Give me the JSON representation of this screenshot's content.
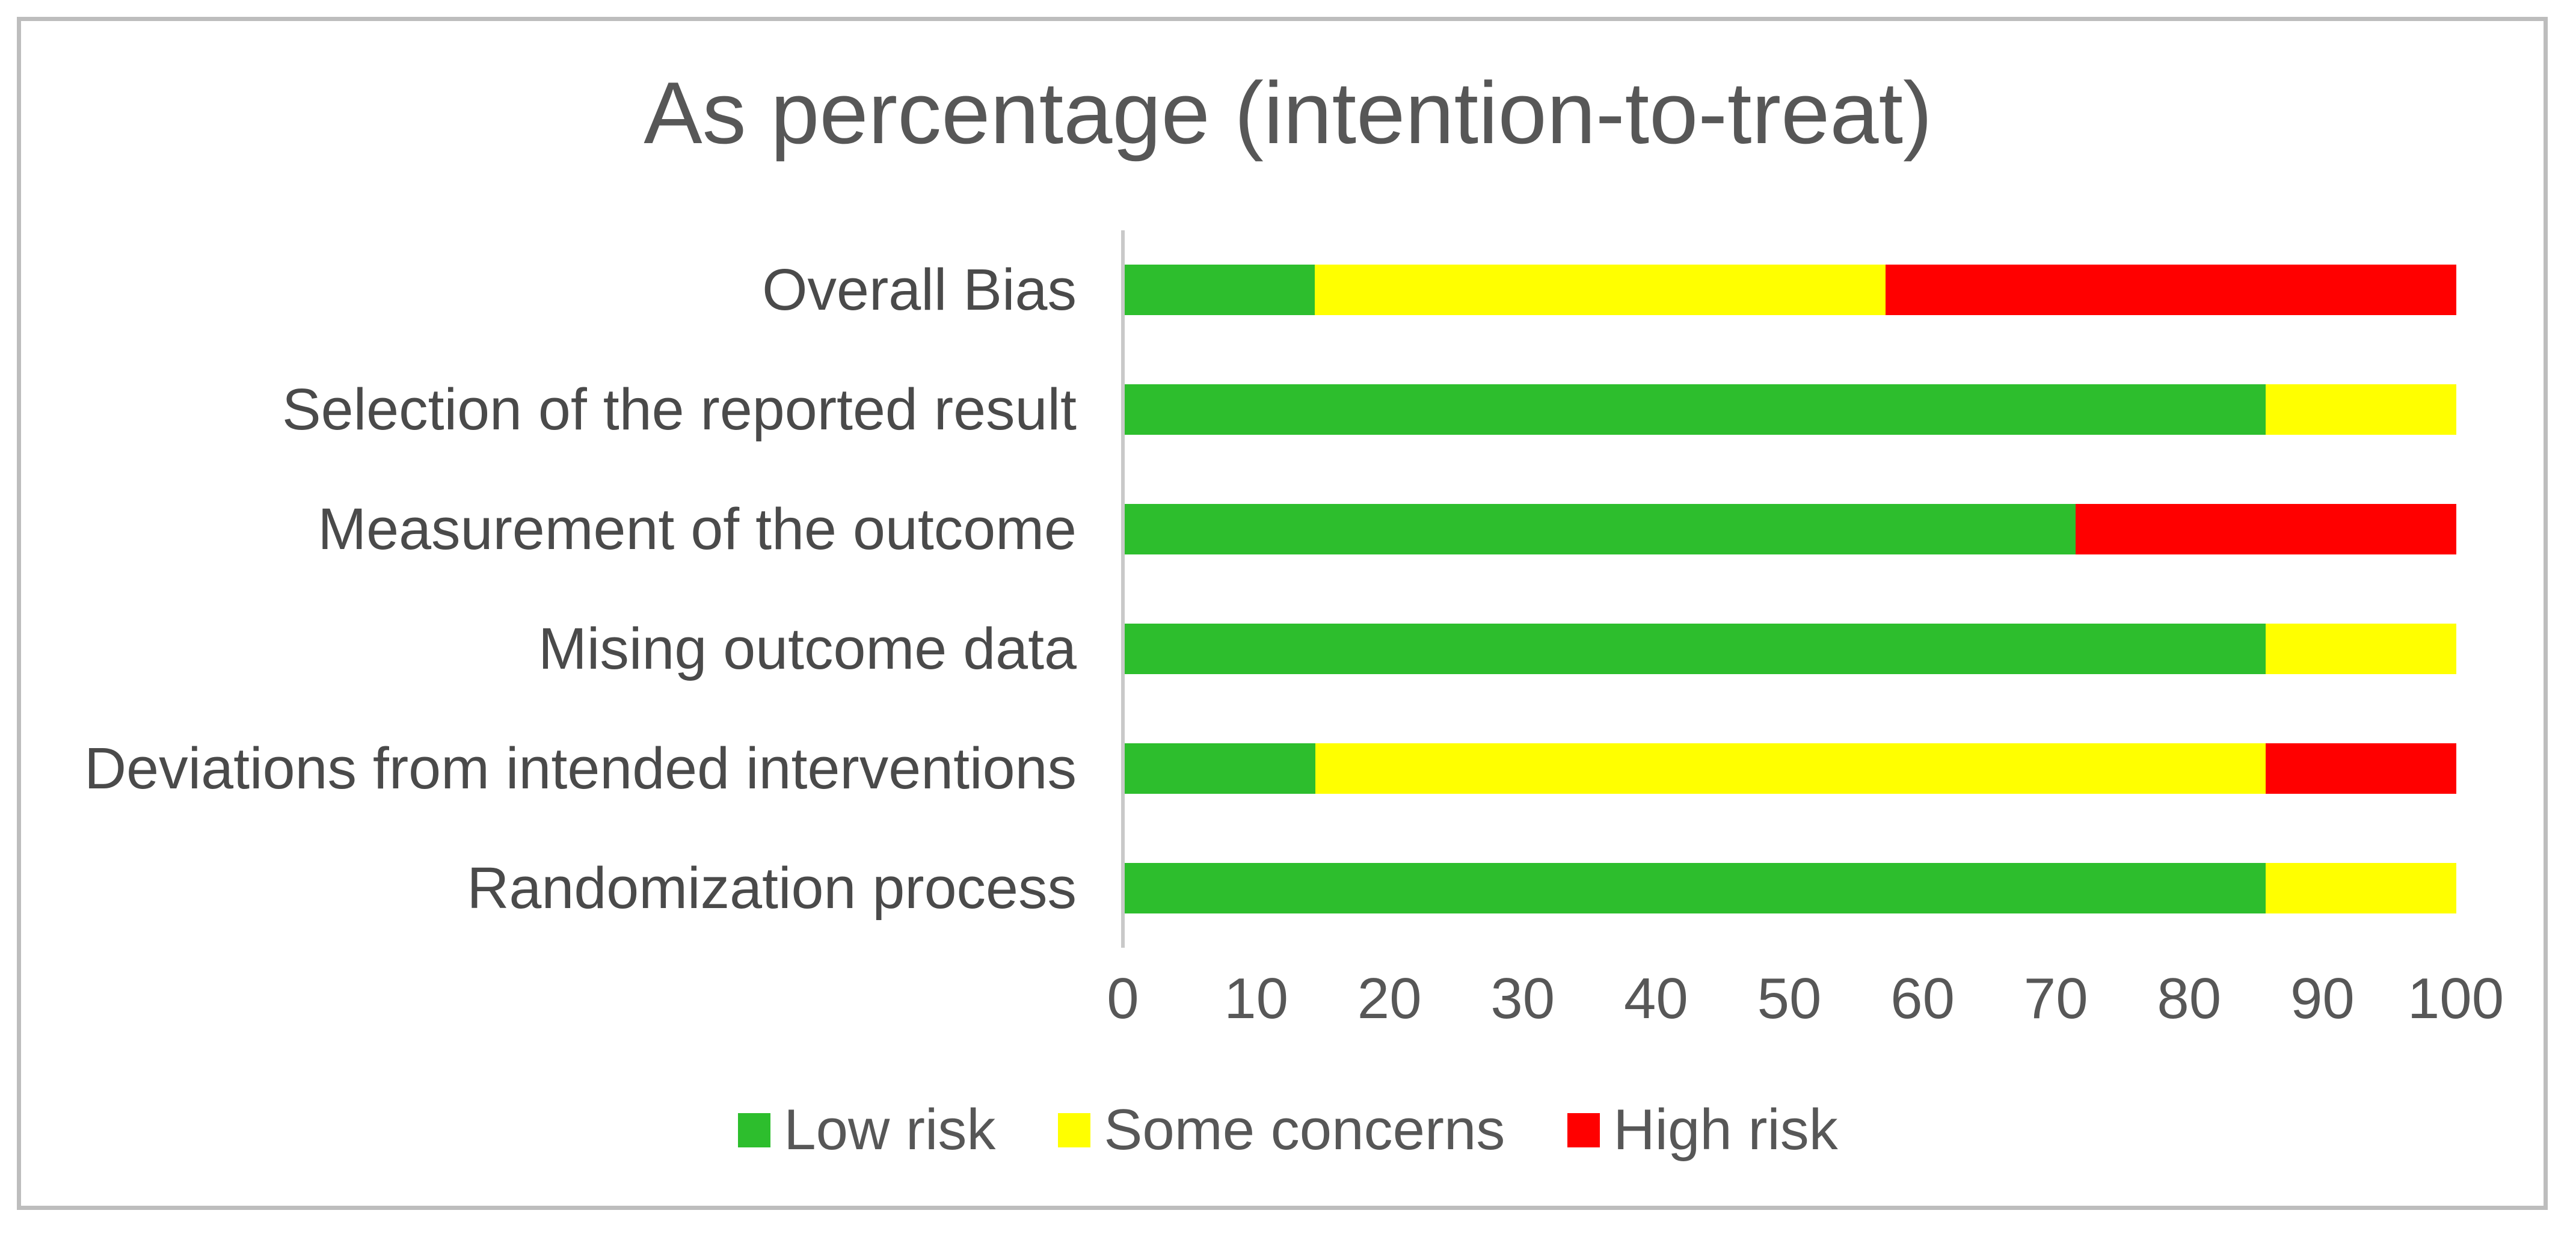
{
  "title": "As percentage (intention-to-treat)",
  "colors": {
    "low_risk": "#2dbe2d",
    "some_concerns": "#ffff00",
    "high_risk": "#ff0000",
    "title_text": "#575757",
    "category_text": "#4a4a4a",
    "tick_text": "#575757",
    "legend_text": "#575757",
    "axis_line": "#c9c9c9",
    "frame_border": "#bdbdbd",
    "background": "#ffffff"
  },
  "chart_data": {
    "type": "bar",
    "orientation": "horizontal",
    "stacked": true,
    "unit": "percent",
    "title": "As percentage (intention-to-treat)",
    "xlabel": "",
    "ylabel": "",
    "xlim": [
      0,
      100
    ],
    "x_ticks": [
      0,
      10,
      20,
      30,
      40,
      50,
      60,
      70,
      80,
      90,
      100
    ],
    "grid": false,
    "legend_position": "bottom",
    "categories": [
      "Overall Bias",
      "Selection of the reported result",
      "Measurement of the outcome",
      "Mising outcome data",
      "Deviations from intended interventions",
      "Randomization process"
    ],
    "series": [
      {
        "name": "Low risk",
        "color_key": "low_risk",
        "values": [
          14.3,
          85.7,
          71.4,
          85.7,
          14.3,
          85.7
        ]
      },
      {
        "name": "Some concerns",
        "color_key": "some_concerns",
        "values": [
          42.9,
          14.3,
          0,
          14.3,
          71.4,
          14.3
        ]
      },
      {
        "name": "High risk",
        "color_key": "high_risk",
        "values": [
          42.9,
          0,
          28.6,
          0,
          14.3,
          0
        ]
      }
    ]
  }
}
